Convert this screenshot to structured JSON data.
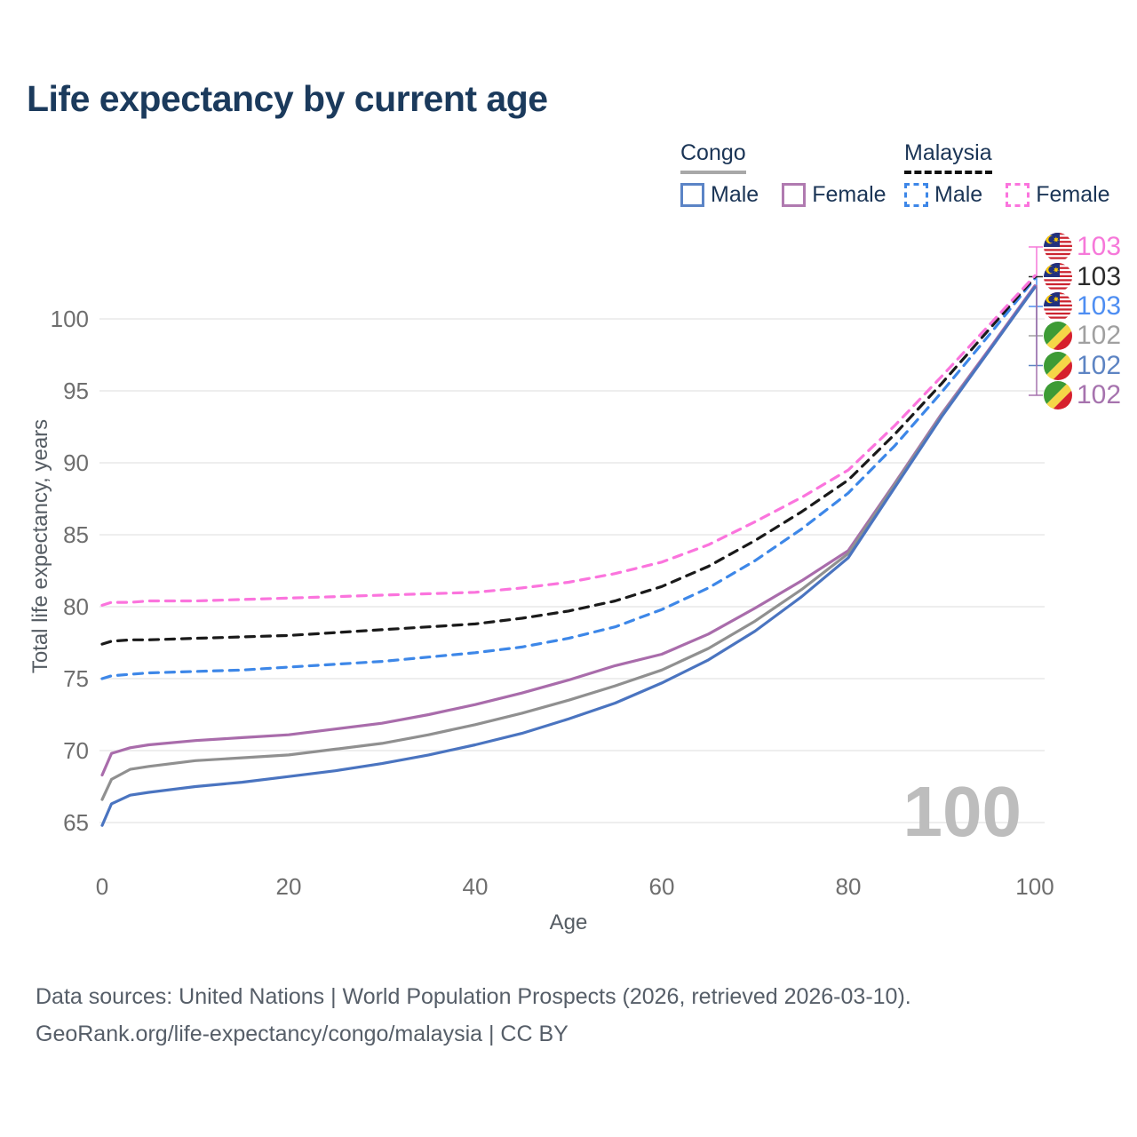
{
  "title": "Life expectancy by current age",
  "legend": {
    "groups": [
      {
        "country": "Congo",
        "line_style": "solid",
        "underline_color": "#a8a8a8",
        "items": [
          {
            "label": "Male",
            "color": "#5b84c6"
          },
          {
            "label": "Female",
            "color": "#b07ab0"
          }
        ]
      },
      {
        "country": "Malaysia",
        "line_style": "dashed",
        "underline_color": "#111111",
        "items": [
          {
            "label": "Male",
            "color": "#3d87e8"
          },
          {
            "label": "Female",
            "color": "#fb74dd"
          }
        ]
      }
    ]
  },
  "y_axis": {
    "title": "Total life expectancy, years",
    "ticks": [
      100,
      95,
      90,
      85,
      80,
      75,
      70,
      65
    ]
  },
  "x_axis": {
    "title": "Age",
    "ticks": [
      0,
      20,
      40,
      60,
      80,
      100
    ]
  },
  "watermark": "100",
  "end_labels": [
    {
      "value": "103",
      "color": "#f678d9",
      "flag": "malaysia",
      "series_key": "Malaysia Female"
    },
    {
      "value": "103",
      "color": "#2b2b2b",
      "flag": "malaysia",
      "series_key": "Malaysia"
    },
    {
      "value": "103",
      "color": "#4e8ef2",
      "flag": "malaysia",
      "series_key": "Malaysia Male"
    },
    {
      "value": "102",
      "color": "#a0a0a0",
      "flag": "congo",
      "series_key": "Congo"
    },
    {
      "value": "102",
      "color": "#5d84c3",
      "flag": "congo",
      "series_key": "Congo Male"
    },
    {
      "value": "102",
      "color": "#a673ae",
      "flag": "congo",
      "series_key": "Congo Female"
    }
  ],
  "footer": {
    "line1": "Data sources: United Nations | World Population Prospects (2026, retrieved 2026-03-10).",
    "line2": "GeoRank.org/life-expectancy/congo/malaysia | CC BY"
  },
  "chart_data": {
    "type": "line",
    "title": "Life expectancy by current age",
    "xlabel": "Age",
    "ylabel": "Total life expectancy, years",
    "xlim": [
      0,
      100
    ],
    "ylim": [
      63,
      104
    ],
    "grid": "horizontal",
    "x": [
      0,
      1,
      3,
      5,
      10,
      15,
      20,
      25,
      30,
      35,
      40,
      45,
      50,
      55,
      60,
      65,
      70,
      75,
      80,
      85,
      90,
      95,
      100
    ],
    "series": [
      {
        "name": "Congo Female",
        "country": "Congo",
        "sex": "female",
        "color": "#a96cab",
        "dash": false,
        "values": [
          68.3,
          69.8,
          70.2,
          70.4,
          70.7,
          70.9,
          71.1,
          71.5,
          71.9,
          72.5,
          73.2,
          74.0,
          74.9,
          75.9,
          76.7,
          78.1,
          79.9,
          81.8,
          83.9,
          88.6,
          93.4,
          97.8,
          102.3
        ]
      },
      {
        "name": "Congo",
        "country": "Congo",
        "sex": "both",
        "color": "#909090",
        "dash": false,
        "values": [
          66.6,
          68.0,
          68.7,
          68.9,
          69.3,
          69.5,
          69.7,
          70.1,
          70.5,
          71.1,
          71.8,
          72.6,
          73.5,
          74.5,
          75.6,
          77.1,
          79.0,
          81.2,
          83.7,
          88.5,
          93.3,
          97.7,
          102.2
        ]
      },
      {
        "name": "Congo Male",
        "country": "Congo",
        "sex": "male",
        "color": "#4a74c0",
        "dash": false,
        "values": [
          64.8,
          66.3,
          66.9,
          67.1,
          67.5,
          67.8,
          68.2,
          68.6,
          69.1,
          69.7,
          70.4,
          71.2,
          72.2,
          73.3,
          74.7,
          76.3,
          78.3,
          80.7,
          83.4,
          88.3,
          93.2,
          97.7,
          102.2
        ]
      },
      {
        "name": "Malaysia Male",
        "country": "Malaysia",
        "sex": "male",
        "color": "#3d87e8",
        "dash": true,
        "values": [
          75.0,
          75.2,
          75.3,
          75.4,
          75.5,
          75.6,
          75.8,
          76.0,
          76.2,
          76.5,
          76.8,
          77.2,
          77.8,
          78.6,
          79.8,
          81.3,
          83.2,
          85.4,
          87.9,
          91.2,
          94.9,
          98.8,
          102.8
        ]
      },
      {
        "name": "Malaysia",
        "country": "Malaysia",
        "sex": "both",
        "color": "#1a1a1a",
        "dash": true,
        "values": [
          77.4,
          77.6,
          77.7,
          77.7,
          77.8,
          77.9,
          78.0,
          78.2,
          78.4,
          78.6,
          78.8,
          79.2,
          79.7,
          80.4,
          81.4,
          82.8,
          84.6,
          86.6,
          88.8,
          92.0,
          95.5,
          99.2,
          102.9
        ]
      },
      {
        "name": "Malaysia Female",
        "country": "Malaysia",
        "sex": "female",
        "color": "#fb74dd",
        "dash": true,
        "values": [
          80.1,
          80.3,
          80.3,
          80.4,
          80.4,
          80.5,
          80.6,
          80.7,
          80.8,
          80.9,
          81.0,
          81.3,
          81.7,
          82.3,
          83.1,
          84.3,
          85.9,
          87.6,
          89.5,
          92.6,
          96.0,
          99.5,
          103.0
        ]
      }
    ]
  }
}
